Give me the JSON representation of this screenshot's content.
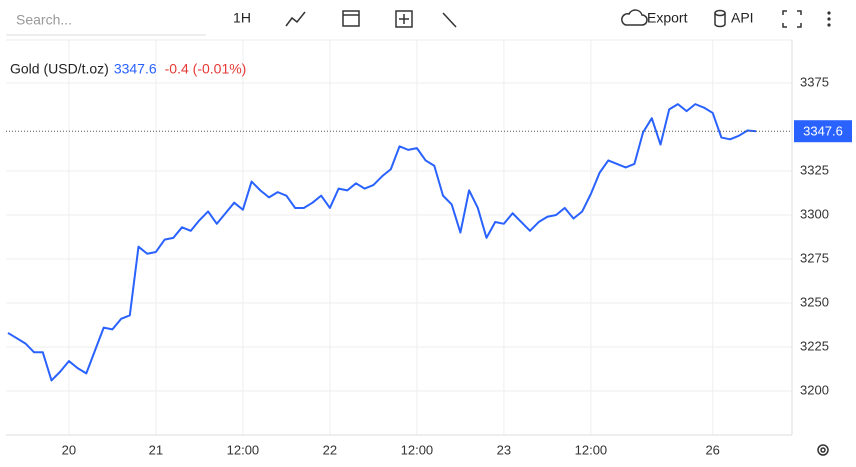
{
  "toolbar": {
    "search_placeholder": "Search...",
    "interval": "1H",
    "export": "Export",
    "api": "API"
  },
  "chart_data": {
    "type": "line",
    "title": "Gold (USD/t.oz)",
    "last_price": 3347.6,
    "change_label": "-0.4 (-0.01%)",
    "categories": [
      null,
      null,
      null,
      null,
      null,
      null,
      null,
      "20",
      null,
      null,
      null,
      null,
      null,
      null,
      null,
      null,
      null,
      "21",
      null,
      null,
      null,
      null,
      null,
      null,
      null,
      null,
      null,
      "12:00",
      null,
      null,
      null,
      null,
      null,
      null,
      null,
      null,
      null,
      "22",
      null,
      null,
      null,
      null,
      null,
      null,
      null,
      null,
      null,
      "12:00",
      null,
      null,
      null,
      null,
      null,
      null,
      null,
      null,
      null,
      "23",
      null,
      null,
      null,
      null,
      null,
      null,
      null,
      null,
      null,
      "12:00",
      null,
      null,
      null,
      null,
      null,
      null,
      null,
      null,
      null,
      null,
      null,
      null,
      null,
      "26",
      null,
      null,
      null,
      null,
      null
    ],
    "series": [
      {
        "name": "Gold (USD/t.oz)",
        "color": "#2962ff",
        "values": [
          3233,
          3230,
          3227,
          3222,
          3222,
          3206,
          3211,
          3217,
          3213,
          3210,
          3223,
          3236,
          3235,
          3241,
          3243,
          3282,
          3278,
          3279,
          3286,
          3287,
          3293,
          3291,
          3297,
          3302,
          3295,
          3301,
          3307,
          3303,
          3319,
          3314,
          3310,
          3313,
          3311,
          3304,
          3304,
          3307,
          3311,
          3304,
          3315,
          3314,
          3318,
          3315,
          3317,
          3322,
          3326,
          3339,
          3337,
          3338,
          3331,
          3328,
          3311,
          3306,
          3290,
          3314,
          3304,
          3287,
          3296,
          3295,
          3301,
          3296,
          3291,
          3296,
          3299,
          3300,
          3304,
          3298,
          3302,
          3312,
          3324,
          3331,
          3329,
          3327,
          3329,
          3347,
          3355,
          3340,
          3360,
          3363,
          3359,
          3363,
          3361,
          3358,
          3344,
          3343,
          3345,
          3348,
          3347.6
        ]
      }
    ],
    "ylim": [
      3175,
      3400
    ],
    "yticks": [
      3200,
      3225,
      3250,
      3275,
      3300,
      3325,
      3375
    ],
    "grid": true,
    "price_color": "#2962ff",
    "change_color": "#e53935"
  }
}
